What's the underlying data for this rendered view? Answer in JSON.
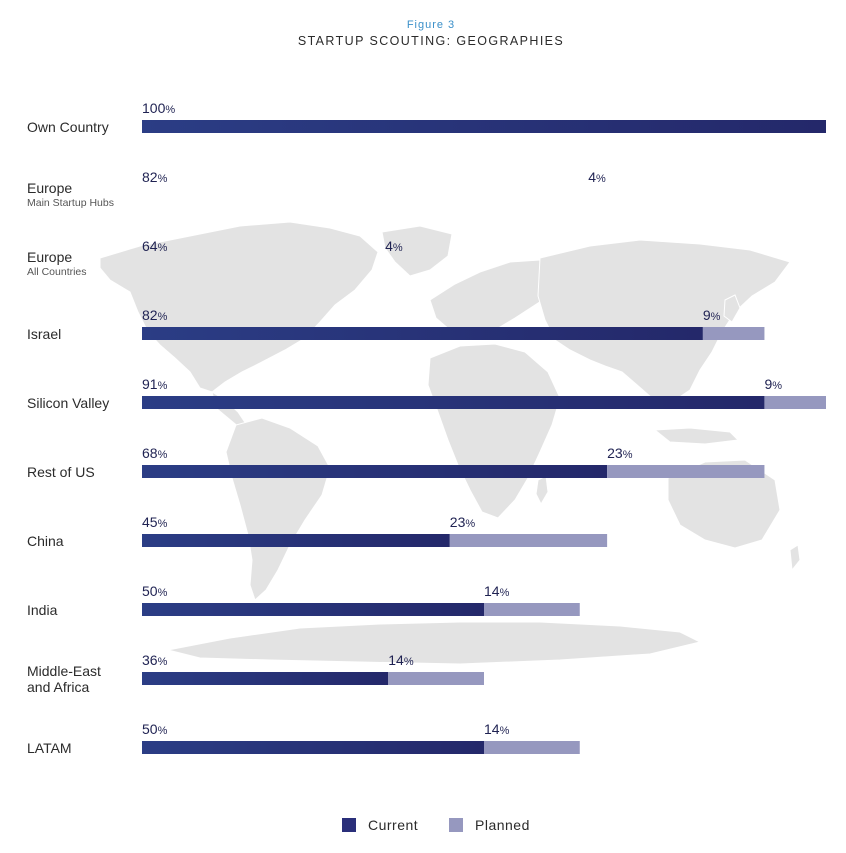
{
  "figure_label": "Figure 3",
  "title": "STARTUP SCOUTING: GEOGRAPHIES",
  "colors": {
    "current": "#2a2f7a",
    "planned": "#9698bf",
    "map": "#e3e3e3"
  },
  "chart_data": {
    "type": "bar",
    "orientation": "horizontal",
    "stacked": true,
    "title": "STARTUP SCOUTING: GEOGRAPHIES",
    "xlim": [
      0,
      100
    ],
    "value_suffix": "%",
    "legend_position": "bottom-center",
    "categories": [
      {
        "label": "Own Country",
        "sublabel": ""
      },
      {
        "label": "Europe",
        "sublabel": "Main Startup Hubs"
      },
      {
        "label": "Europe",
        "sublabel": "All Countries"
      },
      {
        "label": "Israel",
        "sublabel": ""
      },
      {
        "label": "Silicon Valley",
        "sublabel": ""
      },
      {
        "label": "Rest of US",
        "sublabel": ""
      },
      {
        "label": "China",
        "sublabel": ""
      },
      {
        "label": "India",
        "sublabel": ""
      },
      {
        "label": "Middle-East\nand Africa",
        "sublabel": ""
      },
      {
        "label": "LATAM",
        "sublabel": ""
      }
    ],
    "series": [
      {
        "name": "Current",
        "values": [
          100,
          82,
          64,
          82,
          91,
          68,
          45,
          50,
          36,
          50
        ]
      },
      {
        "name": "Planned",
        "values": [
          null,
          4,
          4,
          9,
          9,
          23,
          23,
          14,
          14,
          14
        ]
      }
    ]
  }
}
